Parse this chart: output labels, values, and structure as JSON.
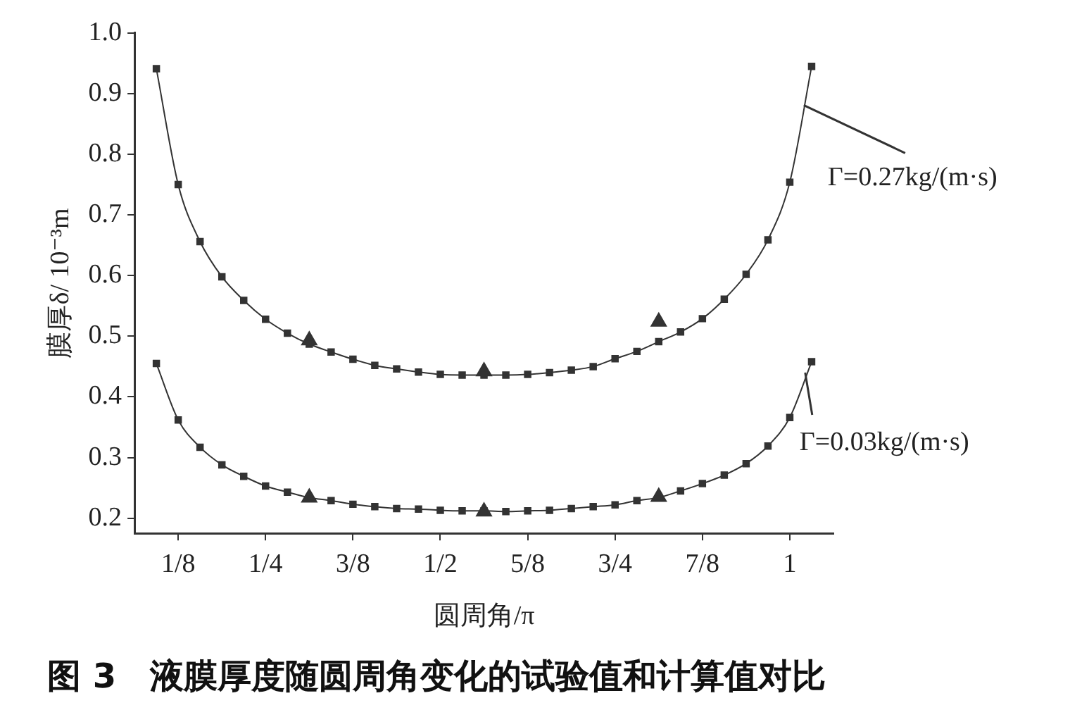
{
  "chart_data": {
    "type": "line",
    "title": "图 3　液膜厚度随圆周角变化的试验值和计算值对比",
    "xlabel": "圆周角/π",
    "ylabel": "膜厚δ/ 10⁻³m",
    "xlim": [
      0.0625,
      1.0625
    ],
    "xticks": [
      {
        "value": 0.125,
        "label": "1/8"
      },
      {
        "value": 0.25,
        "label": "1/4"
      },
      {
        "value": 0.375,
        "label": "3/8"
      },
      {
        "value": 0.5,
        "label": "1/2"
      },
      {
        "value": 0.625,
        "label": "5/8"
      },
      {
        "value": 0.75,
        "label": "3/4"
      },
      {
        "value": 0.875,
        "label": "7/8"
      },
      {
        "value": 1,
        "label": "1"
      }
    ],
    "ylim": [
      0.175,
      1.0
    ],
    "yticks": [
      {
        "value": 0.2,
        "label": "0.2"
      },
      {
        "value": 0.3,
        "label": "0.3"
      },
      {
        "value": 0.4,
        "label": "0.4"
      },
      {
        "value": 0.5,
        "label": "0.5"
      },
      {
        "value": 0.6,
        "label": "0.6"
      },
      {
        "value": 0.7,
        "label": "0.7"
      },
      {
        "value": 0.8,
        "label": "0.8"
      },
      {
        "value": 0.9,
        "label": "0.9"
      },
      {
        "value": 1.0,
        "label": "1.0"
      }
    ],
    "grid": false,
    "legend": false,
    "line_style": "solid",
    "x": [
      0.09375,
      0.125,
      0.15625,
      0.1875,
      0.21875,
      0.25,
      0.28125,
      0.3125,
      0.34375,
      0.375,
      0.40625,
      0.4375,
      0.46875,
      0.5,
      0.53125,
      0.5625,
      0.59375,
      0.625,
      0.65625,
      0.6875,
      0.71875,
      0.75,
      0.78125,
      0.8125,
      0.84375,
      0.875,
      0.90625,
      0.9375,
      0.96875,
      1,
      1.03125
    ],
    "series": [
      {
        "marker": "square",
        "color": "#333333",
        "values": [
          0.941,
          0.75,
          0.656,
          0.598,
          0.559,
          0.528,
          0.505,
          0.487,
          0.474,
          0.462,
          0.452,
          0.446,
          0.441,
          0.437,
          0.436,
          0.436,
          0.436,
          0.437,
          0.44,
          0.444,
          0.45,
          0.463,
          0.475,
          0.491,
          0.507,
          0.529,
          0.561,
          0.602,
          0.659,
          0.754,
          0.945
        ]
      },
      {
        "marker": "square",
        "color": "#333333",
        "values": [
          0.455,
          0.362,
          0.317,
          0.288,
          0.269,
          0.253,
          0.243,
          0.234,
          0.229,
          0.223,
          0.219,
          0.216,
          0.215,
          0.213,
          0.212,
          0.212,
          0.211,
          0.212,
          0.213,
          0.216,
          0.219,
          0.222,
          0.229,
          0.234,
          0.245,
          0.257,
          0.271,
          0.29,
          0.319,
          0.366,
          0.458
        ]
      },
      {
        "type": "scatter",
        "marker": "triangle",
        "color": "#333333",
        "x": [
          0.3125,
          0.5625,
          0.8125
        ],
        "values": [
          0.493,
          0.442,
          0.524
        ]
      },
      {
        "type": "scatter",
        "marker": "triangle",
        "color": "#333333",
        "x": [
          0.3125,
          0.5625,
          0.8125
        ],
        "values": [
          0.234,
          0.211,
          0.235
        ]
      }
    ],
    "annotations": [
      {
        "text": "Γ=0.27kg/(m·s)",
        "x": 1.02,
        "y": 0.881
      },
      {
        "text": "Γ=0.03kg/(m·s)",
        "x": 1.022,
        "y": 0.44
      }
    ]
  }
}
